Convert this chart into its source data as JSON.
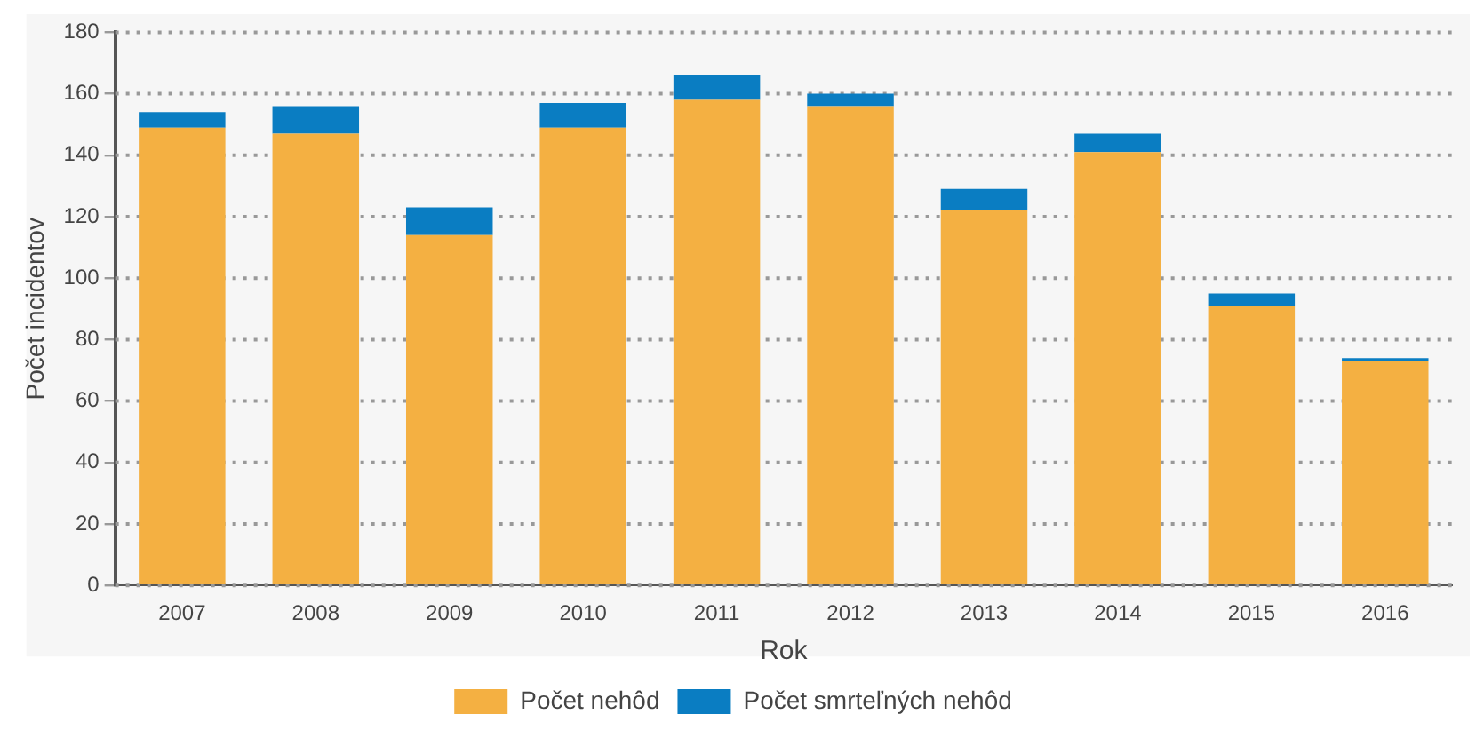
{
  "chart_data": {
    "type": "bar",
    "stacked": true,
    "xlabel": "Rok",
    "ylabel": "Počet incidentov",
    "categories": [
      "2007",
      "2008",
      "2009",
      "2010",
      "2011",
      "2012",
      "2013",
      "2014",
      "2015",
      "2016"
    ],
    "series": [
      {
        "name": "Počet nehôd",
        "color": "#f4b042",
        "values": [
          149,
          147,
          114,
          149,
          158,
          156,
          122,
          141,
          91,
          73
        ]
      },
      {
        "name": "Počet smrteľných nehôd",
        "color": "#0a7dc2",
        "values": [
          5,
          9,
          9,
          8,
          8,
          4,
          7,
          6,
          4,
          1
        ]
      }
    ],
    "ylim": [
      0,
      180
    ],
    "yticks": [
      0,
      20,
      40,
      60,
      80,
      100,
      120,
      140,
      160,
      180
    ],
    "grid": "y",
    "legend": "bottom"
  }
}
